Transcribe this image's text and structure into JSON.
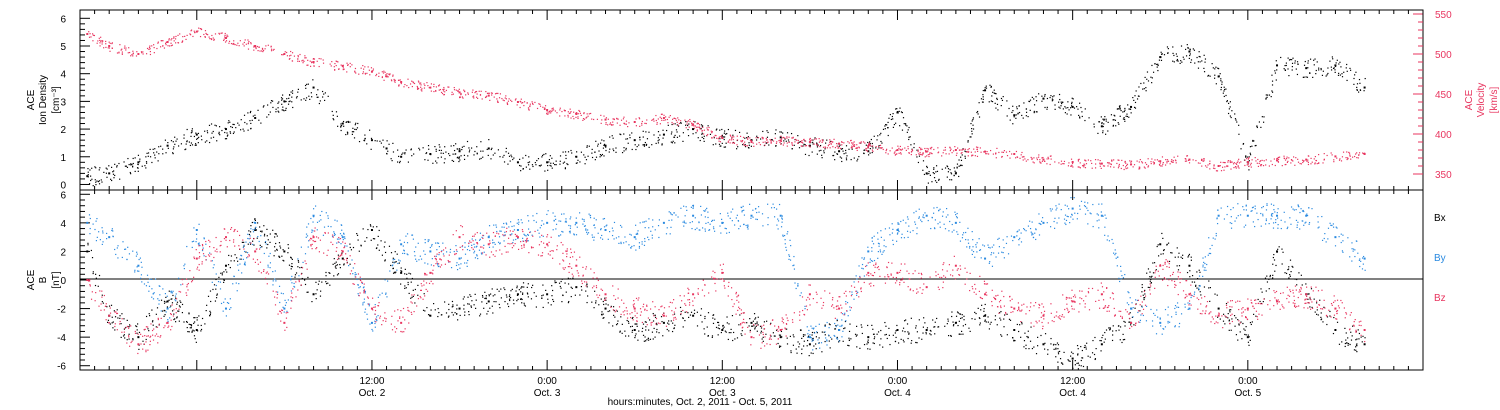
{
  "colors": {
    "black": "#000000",
    "pink": "#e8355f",
    "blue": "#2a8ae0"
  },
  "xaxis": {
    "title": "hours:minutes, Oct.  2, 2011 - Oct.  5, 2011",
    "hours_range": [
      -8,
      84
    ],
    "ticks": [
      {
        "hour": 12,
        "time": "12:00",
        "date": "Oct. 2"
      },
      {
        "hour": 24,
        "time": "0:00",
        "date": "Oct. 3"
      },
      {
        "hour": 36,
        "time": "12:00",
        "date": "Oct. 3"
      },
      {
        "hour": 48,
        "time": "0:00",
        "date": "Oct. 4"
      },
      {
        "hour": 60,
        "time": "12:00",
        "date": "Oct. 4"
      },
      {
        "hour": 72,
        "time": "0:00",
        "date": "Oct. 5"
      }
    ]
  },
  "panels": {
    "top": {
      "left_label": [
        "ACE",
        "Ion Density",
        "[cm⁻³]"
      ],
      "right_label": [
        "ACE",
        "Velocity",
        "[km/s]"
      ],
      "left_ticks": [
        "0",
        "1",
        "2",
        "3",
        "4",
        "5",
        "6"
      ],
      "right_ticks": [
        "350",
        "400",
        "450",
        "500",
        "550"
      ]
    },
    "bottom": {
      "left_label": [
        "ACE",
        "B",
        "[nT]"
      ],
      "left_ticks": [
        "-6",
        "-4",
        "-2",
        "0",
        "2",
        "4",
        "6"
      ],
      "legend": [
        {
          "label": "Bx",
          "color": "#000000"
        },
        {
          "label": "By",
          "color": "#2a8ae0"
        },
        {
          "label": "Bz",
          "color": "#e8355f"
        }
      ]
    }
  },
  "chart_data": [
    {
      "type": "scatter",
      "title": "",
      "xlabel": "hours:minutes, Oct.  2, 2011 - Oct.  5, 2011",
      "ylabel": "ACE Ion Density [cm-3]",
      "y2label": "ACE Velocity [km/s]",
      "ylim": [
        -0.2,
        6.3
      ],
      "y2lim": [
        330,
        555
      ],
      "series": [
        {
          "name": "Ion Density",
          "axis": "left",
          "color": "#000000",
          "x": [
            -7.5,
            -6,
            -4,
            -2,
            0,
            2,
            4,
            6,
            8,
            10,
            12,
            13,
            14,
            16,
            18,
            20,
            22,
            24,
            26,
            28,
            30,
            32,
            34,
            36,
            38,
            40,
            42,
            44,
            46,
            48,
            50,
            52,
            54,
            56,
            58,
            60,
            62,
            64,
            66,
            68,
            70,
            72,
            74,
            76,
            78,
            80
          ],
          "y": [
            0.3,
            0.4,
            0.8,
            1.4,
            1.8,
            2.0,
            2.4,
            3.0,
            3.5,
            2.2,
            1.6,
            1.3,
            1.0,
            1.1,
            1.2,
            1.3,
            0.8,
            0.8,
            1.0,
            1.4,
            1.6,
            1.8,
            2.0,
            1.7,
            1.6,
            1.7,
            1.4,
            1.2,
            1.2,
            2.6,
            0.4,
            0.4,
            3.4,
            2.5,
            3.1,
            2.8,
            2.1,
            2.8,
            4.6,
            4.8,
            3.9,
            0.8,
            4.3,
            4.2,
            4.3,
            3.5
          ]
        },
        {
          "name": "Velocity",
          "axis": "right",
          "color": "#e8355f",
          "x": [
            -7.5,
            -6,
            -4,
            -2,
            0,
            2,
            4,
            6,
            8,
            10,
            12,
            13,
            14,
            16,
            18,
            20,
            22,
            24,
            26,
            28,
            30,
            32,
            34,
            36,
            38,
            40,
            42,
            44,
            46,
            48,
            50,
            52,
            54,
            56,
            58,
            60,
            62,
            64,
            66,
            68,
            70,
            72,
            74,
            76,
            78,
            80
          ],
          "y": [
            525,
            510,
            500,
            515,
            528,
            520,
            510,
            500,
            490,
            485,
            478,
            472,
            465,
            458,
            452,
            448,
            440,
            430,
            425,
            418,
            415,
            420,
            412,
            395,
            390,
            392,
            390,
            388,
            385,
            380,
            378,
            380,
            378,
            375,
            368,
            365,
            363,
            362,
            366,
            368,
            360,
            365,
            367,
            368,
            372,
            375
          ]
        }
      ]
    },
    {
      "type": "scatter",
      "title": "",
      "xlabel": "hours:minutes, Oct.  2, 2011 - Oct.  5, 2011",
      "ylabel": "ACE B [nT]",
      "ylim": [
        -6.3,
        6.3
      ],
      "series": [
        {
          "name": "Bx",
          "color": "#000000",
          "x": [
            -7.5,
            -6,
            -4,
            -2,
            0,
            2,
            4,
            6,
            8,
            10,
            12,
            14,
            16,
            18,
            20,
            22,
            24,
            26,
            28,
            30,
            32,
            34,
            36,
            38,
            40,
            42,
            44,
            46,
            48,
            50,
            52,
            54,
            56,
            58,
            60,
            62,
            64,
            66,
            68,
            70,
            72,
            74,
            76,
            78,
            80
          ],
          "y": [
            2.0,
            -2.5,
            -4.0,
            -1.5,
            -3.5,
            1.0,
            3.5,
            2.0,
            -1.0,
            1.5,
            3.5,
            0.5,
            -2.5,
            -2.0,
            -1.5,
            -1.0,
            -1.0,
            -0.5,
            -2.0,
            -3.5,
            -3.0,
            -2.5,
            -3.5,
            -3.0,
            -4.0,
            -4.5,
            -3.5,
            -4.0,
            -3.5,
            -3.5,
            -3.0,
            -2.5,
            -3.5,
            -4.5,
            -5.5,
            -4.5,
            -3.0,
            2.5,
            1.0,
            -2.0,
            -4.0,
            2.0,
            -1.0,
            -3.5,
            -4.5
          ]
        },
        {
          "name": "By",
          "color": "#2a8ae0",
          "x": [
            -7.5,
            -6,
            -4,
            -2,
            0,
            2,
            4,
            6,
            8,
            10,
            12,
            14,
            16,
            18,
            20,
            22,
            24,
            26,
            28,
            30,
            32,
            34,
            36,
            38,
            40,
            42,
            44,
            46,
            48,
            50,
            52,
            54,
            56,
            58,
            60,
            62,
            64,
            66,
            68,
            70,
            72,
            74,
            76,
            78,
            80
          ],
          "y": [
            4.0,
            3.0,
            1.0,
            -2.0,
            3.5,
            -2.0,
            4.0,
            -2.0,
            4.5,
            3.0,
            -3.0,
            2.5,
            2.0,
            1.5,
            3.0,
            3.5,
            4.0,
            4.0,
            3.5,
            3.0,
            4.0,
            4.5,
            4.0,
            4.5,
            4.5,
            -4.0,
            -3.5,
            2.0,
            3.5,
            4.5,
            4.0,
            1.5,
            3.0,
            4.0,
            5.0,
            4.5,
            -2.0,
            -3.0,
            -2.0,
            4.5,
            4.5,
            4.5,
            4.5,
            3.0,
            1.5
          ]
        },
        {
          "name": "Bz",
          "color": "#e8355f",
          "x": [
            -7.5,
            -6,
            -4,
            -2,
            0,
            2,
            4,
            6,
            8,
            10,
            12,
            14,
            16,
            18,
            20,
            22,
            24,
            26,
            28,
            30,
            32,
            34,
            36,
            38,
            40,
            42,
            44,
            46,
            48,
            50,
            52,
            54,
            56,
            58,
            60,
            62,
            64,
            66,
            68,
            70,
            72,
            74,
            76,
            78,
            80
          ],
          "y": [
            0.0,
            -2.5,
            -4.5,
            -3.0,
            1.5,
            3.0,
            2.0,
            -3.0,
            3.0,
            2.0,
            -2.0,
            -3.0,
            0.5,
            3.0,
            2.5,
            3.0,
            2.5,
            1.0,
            -1.0,
            -2.0,
            -2.5,
            -1.0,
            0.5,
            -4.0,
            -3.5,
            -1.0,
            -2.0,
            0.5,
            0.5,
            -0.5,
            1.0,
            -1.0,
            -2.0,
            -2.5,
            -1.5,
            -1.0,
            -3.0,
            1.0,
            -1.0,
            -2.5,
            -2.0,
            -1.5,
            -1.0,
            -2.0,
            -3.5
          ]
        }
      ]
    }
  ]
}
